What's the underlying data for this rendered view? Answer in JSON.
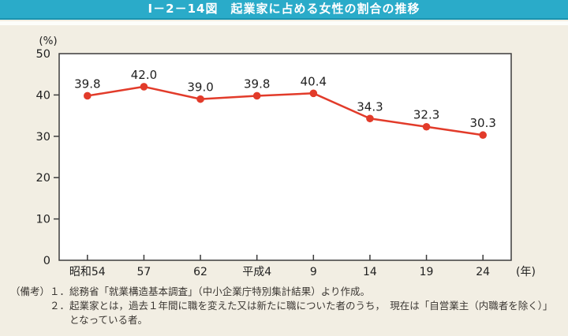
{
  "header": {
    "title": "Ⅰ－2－14図　起業家に占める女性の割合の推移",
    "bar_color": "#2aabc9"
  },
  "chart_data": {
    "type": "line",
    "title": "起業家に占める女性の割合の推移",
    "categories": [
      "昭和54",
      "57",
      "62",
      "平成4",
      "9",
      "14",
      "19",
      "24"
    ],
    "values": [
      39.8,
      42.0,
      39.0,
      39.8,
      40.4,
      34.3,
      32.3,
      30.3
    ],
    "value_labels": [
      "39.8",
      "42.0",
      "39.0",
      "39.8",
      "40.4",
      "34.3",
      "32.3",
      "30.3"
    ],
    "y_axis_unit": "(%)",
    "x_axis_unit": "(年)",
    "y_ticks": [
      0,
      10,
      20,
      30,
      40,
      50
    ],
    "ylim": [
      0,
      50
    ],
    "grid": false,
    "legend": "none",
    "line_color": "#e23b2a",
    "marker_color": "#e23b2a",
    "plot_bg_color": "#ffffff",
    "frame_color": "#3c3c3c"
  },
  "notes": {
    "label": "（備考）",
    "items": [
      {
        "num": "１．",
        "lines": [
          "総務省「就業構造基本調査」（中小企業庁特別集計結果）より作成。"
        ]
      },
      {
        "num": "２．",
        "lines": [
          "起業家とは，過去１年間に職を変えた又は新たに職についた者のうち，　現在は「自営業主（内職者を除く）」",
          "となっている者。"
        ]
      }
    ]
  }
}
